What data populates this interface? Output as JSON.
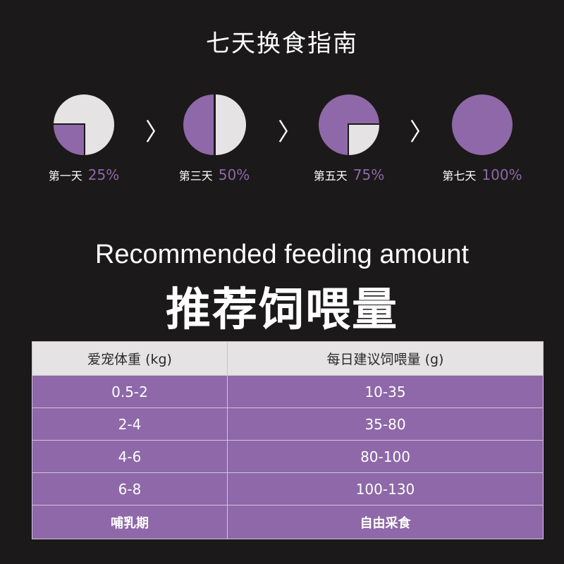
{
  "title": "七天换食指南",
  "colors": {
    "accent": "#8e68a8",
    "light": "#e5e3e4",
    "background": "#1b1919"
  },
  "steps": [
    {
      "day": "第一天",
      "percent": "25%",
      "fraction": 0.25
    },
    {
      "day": "第三天",
      "percent": "50%",
      "fraction": 0.5
    },
    {
      "day": "第五天",
      "percent": "75%",
      "fraction": 0.75
    },
    {
      "day": "第七天",
      "percent": "100%",
      "fraction": 1
    }
  ],
  "arrow_icon": "chevron-right-icon",
  "subtitle_en": "Recommended feeding amount",
  "subtitle_cn": "推荐饲喂量",
  "table": {
    "headers": [
      "爱宠体重 (kg)",
      "每日建议饲喂量 (g)"
    ],
    "rows": [
      [
        "0.5-2",
        "10-35"
      ],
      [
        "2-4",
        "35-80"
      ],
      [
        "4-6",
        "80-100"
      ],
      [
        "6-8",
        "100-130"
      ],
      [
        "哺乳期",
        "自由采食"
      ]
    ]
  }
}
